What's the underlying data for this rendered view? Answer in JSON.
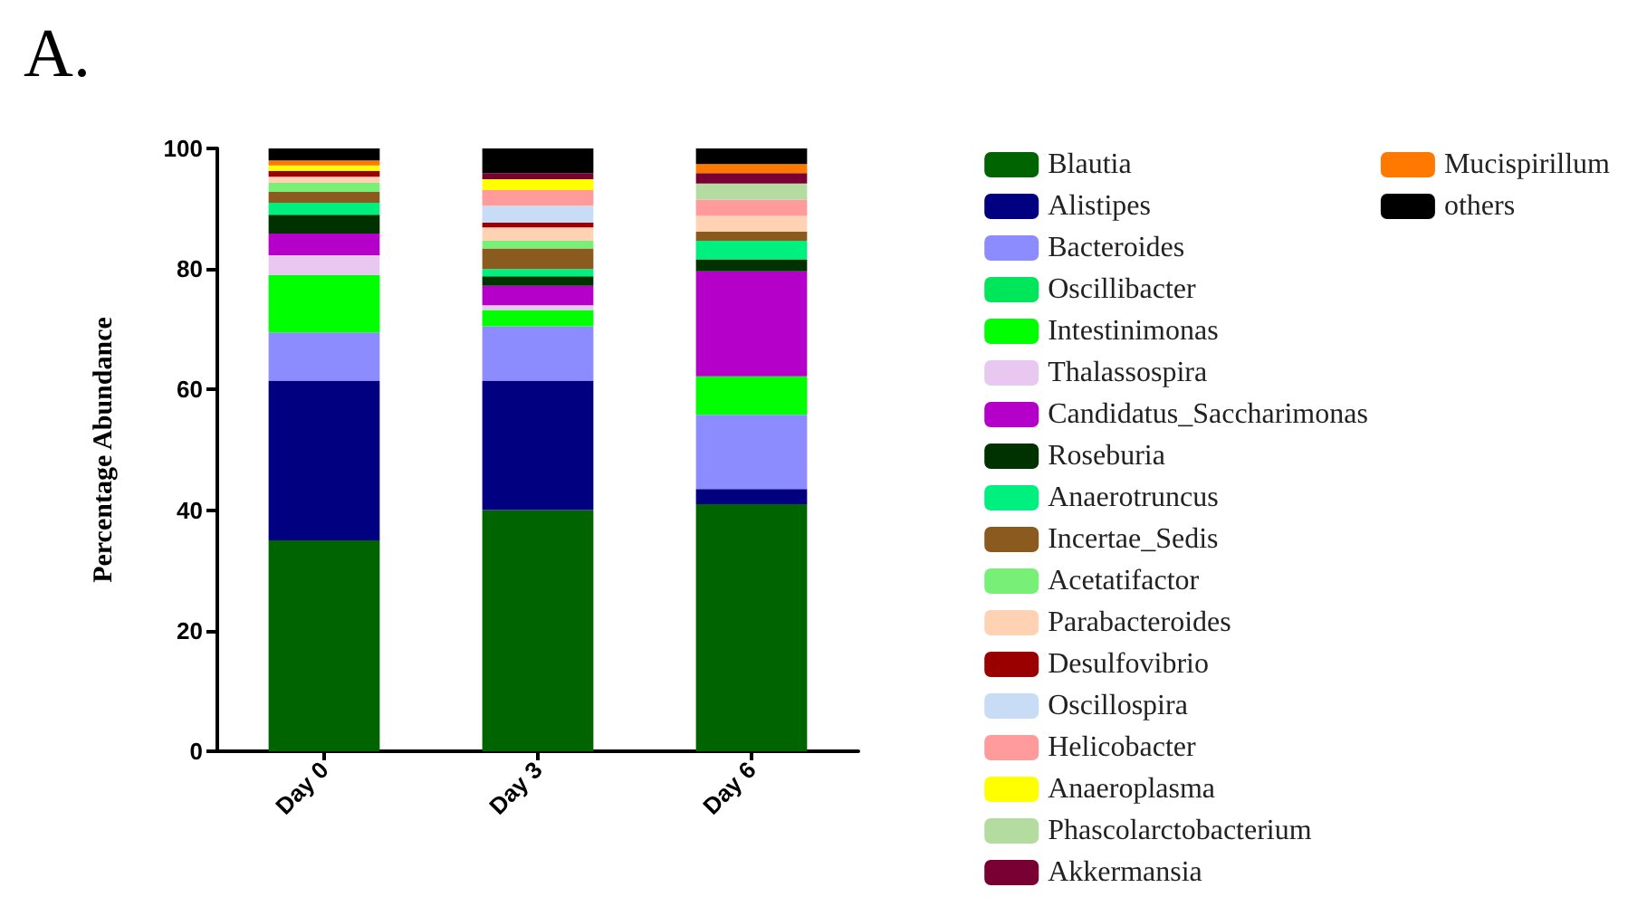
{
  "chart_data": {
    "type": "bar",
    "title": "A.",
    "ylabel": "Percentage Abundance",
    "categories": [
      "Day 0",
      "Day 3",
      "Day 6"
    ],
    "stacked": true,
    "legend": "right",
    "grid": false,
    "ylim": [
      0,
      100
    ],
    "yticks": [
      0,
      20,
      40,
      60,
      80,
      100
    ],
    "series": [
      {
        "name": "Blautia",
        "color": "#006400",
        "values": [
          35,
          40,
          41
        ]
      },
      {
        "name": "Alistipes",
        "color": "#000080",
        "values": [
          26.5,
          21.5,
          2.5
        ]
      },
      {
        "name": "Bacteroides",
        "color": "#8c8cff",
        "values": [
          8,
          9,
          12.3
        ]
      },
      {
        "name": "Oscillibacter",
        "color": "#00e65a",
        "values": [
          0,
          0,
          0
        ]
      },
      {
        "name": "Intestinimonas",
        "color": "#00ff00",
        "values": [
          9.5,
          2.7,
          6.4
        ]
      },
      {
        "name": "Thalassospira",
        "color": "#e8c8f0",
        "values": [
          3.3,
          0.8,
          0
        ]
      },
      {
        "name": "Candidatus_Saccharimonas",
        "color": "#b400c8",
        "values": [
          3.6,
          3.2,
          17.4
        ]
      },
      {
        "name": "Roseburia",
        "color": "#003200",
        "values": [
          3.1,
          1.6,
          2
        ]
      },
      {
        "name": "Anaerotruncus",
        "color": "#00f080",
        "values": [
          2,
          1.2,
          3.1
        ]
      },
      {
        "name": "Incertae_Sedis",
        "color": "#8b5a1e",
        "values": [
          1.8,
          3.4,
          1.5
        ]
      },
      {
        "name": "Acetatifactor",
        "color": "#78f078",
        "values": [
          1.5,
          1.3,
          0
        ]
      },
      {
        "name": "Parabacteroides",
        "color": "#ffd2b4",
        "values": [
          1,
          2.2,
          2.6
        ]
      },
      {
        "name": "Desulfovibrio",
        "color": "#9b0000",
        "values": [
          1,
          0.8,
          0
        ]
      },
      {
        "name": "Oscillospira",
        "color": "#c8dcf5",
        "values": [
          0,
          2.8,
          0
        ]
      },
      {
        "name": "Helicobacter",
        "color": "#ff9b9b",
        "values": [
          0,
          2.6,
          2.7
        ]
      },
      {
        "name": "Anaeroplasma",
        "color": "#ffff00",
        "values": [
          0.9,
          1.8,
          0
        ]
      },
      {
        "name": "Phascolarctobacterium",
        "color": "#b4dca0",
        "values": [
          0,
          0,
          2.7
        ]
      },
      {
        "name": "Akkermansia",
        "color": "#780032",
        "values": [
          0,
          1,
          1.7
        ]
      },
      {
        "name": "Mucispirillum",
        "color": "#ff7800",
        "values": [
          0.8,
          0,
          1.5
        ]
      },
      {
        "name": "others",
        "color": "#000000",
        "values": [
          2,
          4.1,
          2.9
        ]
      }
    ]
  }
}
